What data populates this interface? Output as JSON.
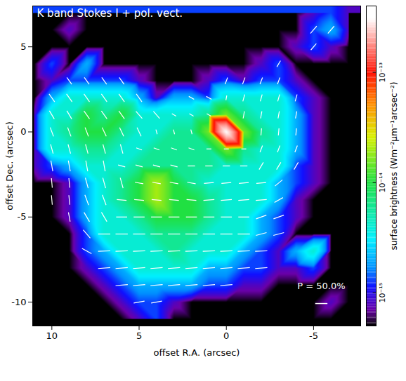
{
  "chart_data": {
    "type": "heatmap",
    "title": "K band Stokes I + pol. vect.",
    "x_label": "offset R.A. (arcsec)",
    "y_label": "offset Dec. (arcsec)",
    "xlim": [
      11.1,
      -7.7
    ],
    "xticks": [
      10,
      5,
      0,
      -5
    ],
    "ylim": [
      -11.4,
      7.4
    ],
    "yticks": [
      5,
      0,
      -5,
      -10
    ],
    "grid": false,
    "cells": {
      "x": [
        11,
        10,
        9,
        8,
        7,
        6,
        5,
        4,
        3,
        2,
        1,
        0,
        -1,
        -2,
        -3,
        -4,
        -5,
        -6,
        -7
      ],
      "y": [
        7,
        6,
        5,
        4,
        3,
        2,
        1,
        0,
        -1,
        -2,
        -3,
        -4,
        -5,
        -6,
        -7,
        -8,
        -9,
        -10,
        -11
      ],
      "values": [
        [
          5e-16,
          5e-16,
          5e-16,
          5e-16,
          5e-16,
          5e-16,
          5e-16,
          5e-16,
          5e-16,
          5e-16,
          5e-16,
          5e-16,
          5e-16,
          5e-16,
          5e-16,
          5e-16,
          8e-16,
          1.3e-15,
          8e-16
        ],
        [
          5e-16,
          5e-16,
          8e-16,
          5e-16,
          5e-16,
          5e-16,
          5e-16,
          5e-16,
          5e-16,
          5e-16,
          5e-16,
          5e-16,
          5e-16,
          5e-16,
          5e-16,
          5e-16,
          1.3e-15,
          2e-15,
          8e-16
        ],
        [
          5e-16,
          5e-16,
          5e-16,
          5e-16,
          5e-16,
          5e-16,
          5e-16,
          5e-16,
          5e-16,
          5e-16,
          5e-16,
          5e-16,
          5e-16,
          5e-16,
          5e-16,
          8e-16,
          1.3e-15,
          8e-16,
          5e-16
        ],
        [
          5e-16,
          1.3e-15,
          5e-16,
          2e-15,
          5e-16,
          5e-16,
          5e-16,
          5e-16,
          5e-16,
          5e-16,
          5e-16,
          5e-16,
          5e-16,
          8e-16,
          1.3e-15,
          5e-16,
          5e-16,
          5e-16,
          5e-16
        ],
        [
          5e-16,
          8e-16,
          1.3e-15,
          1.3e-15,
          1.3e-15,
          1.3e-15,
          8e-16,
          5e-16,
          5e-16,
          5e-16,
          8e-16,
          1.3e-15,
          8e-16,
          1.3e-15,
          1.3e-15,
          8e-16,
          5e-16,
          5e-16,
          5e-16
        ],
        [
          5e-16,
          2e-15,
          4e-15,
          4e-15,
          4e-15,
          4e-15,
          2e-15,
          8e-16,
          2e-15,
          2e-15,
          1.3e-15,
          4e-15,
          4e-15,
          4e-15,
          4e-15,
          1.3e-15,
          8e-16,
          5e-16,
          5e-16
        ],
        [
          8e-16,
          4e-15,
          4e-15,
          1e-14,
          6e-15,
          1e-14,
          4e-15,
          4e-15,
          4e-15,
          4e-15,
          6e-15,
          1.5e-14,
          6e-15,
          4e-15,
          4e-15,
          2e-15,
          8e-16,
          5e-16,
          5e-16
        ],
        [
          8e-16,
          4e-15,
          6e-15,
          1e-14,
          1e-14,
          6e-15,
          4e-15,
          4e-15,
          6e-15,
          6e-15,
          1.5e-14,
          3e-13,
          1.5e-14,
          6e-15,
          4e-15,
          2e-15,
          8e-16,
          5e-16,
          5e-16
        ],
        [
          8e-16,
          4e-15,
          4e-15,
          6e-15,
          6e-15,
          4e-15,
          4e-15,
          6e-15,
          6e-15,
          6e-15,
          6e-15,
          1.5e-14,
          6e-15,
          4e-15,
          4e-15,
          2e-15,
          8e-16,
          5e-16,
          5e-16
        ],
        [
          8e-16,
          1.3e-15,
          2e-15,
          4e-15,
          4e-15,
          4e-15,
          6e-15,
          6e-15,
          6e-15,
          6e-15,
          6e-15,
          4e-15,
          4e-15,
          4e-15,
          4e-15,
          1.3e-15,
          8e-16,
          5e-16,
          5e-16
        ],
        [
          5e-16,
          5e-16,
          8e-16,
          2e-15,
          4e-15,
          6e-15,
          1e-14,
          2e-14,
          1e-14,
          6e-15,
          4e-15,
          4e-15,
          4e-15,
          4e-15,
          2e-15,
          1.3e-15,
          8e-16,
          5e-16,
          5e-16
        ],
        [
          5e-16,
          5e-16,
          8e-16,
          2e-15,
          4e-15,
          6e-15,
          1e-14,
          2e-14,
          1e-14,
          1e-14,
          6e-15,
          4e-15,
          4e-15,
          4e-15,
          2e-15,
          8e-16,
          5e-16,
          5e-16,
          5e-16
        ],
        [
          5e-16,
          5e-16,
          8e-16,
          2e-15,
          4e-15,
          4e-15,
          6e-15,
          1e-14,
          1e-14,
          1e-14,
          6e-15,
          4e-15,
          4e-15,
          2e-15,
          1.3e-15,
          8e-16,
          5e-16,
          5e-16,
          5e-16
        ],
        [
          5e-16,
          5e-16,
          5e-16,
          1.3e-15,
          4e-15,
          4e-15,
          4e-15,
          6e-15,
          6e-15,
          6e-15,
          4e-15,
          4e-15,
          4e-15,
          2e-15,
          1.3e-15,
          5e-16,
          5e-16,
          5e-16,
          5e-16
        ],
        [
          5e-16,
          5e-16,
          5e-16,
          1.3e-15,
          2e-15,
          4e-15,
          4e-15,
          4e-15,
          6e-15,
          4e-15,
          4e-15,
          4e-15,
          2e-15,
          1.3e-15,
          8e-16,
          2e-15,
          4e-15,
          5e-16,
          5e-16
        ],
        [
          5e-16,
          5e-16,
          5e-16,
          8e-16,
          1.3e-15,
          2e-15,
          4e-15,
          4e-15,
          4e-15,
          4e-15,
          2e-15,
          2e-15,
          1.3e-15,
          1.3e-15,
          8e-16,
          8e-16,
          1.3e-15,
          5e-16,
          5e-16
        ],
        [
          5e-16,
          5e-16,
          5e-16,
          5e-16,
          8e-16,
          1.3e-15,
          2e-15,
          2e-15,
          2e-15,
          2e-15,
          1.3e-15,
          1.3e-15,
          8e-16,
          8e-16,
          5e-16,
          5e-16,
          5e-16,
          5e-16,
          5e-16
        ],
        [
          5e-16,
          5e-16,
          5e-16,
          5e-16,
          5e-16,
          8e-16,
          1.3e-15,
          1.3e-15,
          8e-16,
          5e-16,
          5e-16,
          5e-16,
          5e-16,
          5e-16,
          5e-16,
          5e-16,
          5e-16,
          8e-16,
          5e-16
        ],
        [
          5e-16,
          5e-16,
          5e-16,
          5e-16,
          5e-16,
          5e-16,
          8e-16,
          1.3e-15,
          5e-16,
          5e-16,
          5e-16,
          5e-16,
          5e-16,
          5e-16,
          5e-16,
          5e-16,
          5e-16,
          5e-16,
          5e-16
        ]
      ]
    },
    "colorbar": {
      "label": "surface brightness (Wm⁻²μm⁻¹arcsec⁻²)",
      "lim": [
        5e-16,
        4e-13
      ],
      "ticks": [
        {
          "value": 1e-15,
          "label": "10⁻¹⁵"
        },
        {
          "value": 1e-14,
          "label": "10⁻¹⁴"
        },
        {
          "value": 1e-13,
          "label": "10⁻¹³"
        }
      ],
      "log": true
    },
    "vectors": {
      "color": "#ffffff",
      "x": [
        10,
        9,
        8,
        7,
        6,
        5,
        4,
        3,
        2,
        1,
        0,
        -1,
        -2,
        -3,
        -4,
        -5,
        -6
      ],
      "y": [
        6,
        5,
        4,
        3,
        2,
        1,
        0,
        -1,
        -2,
        -3,
        -4,
        -5,
        -6,
        -7,
        -8,
        -9,
        -10
      ],
      "p": [
        [
          null,
          null,
          null,
          null,
          null,
          null,
          null,
          null,
          null,
          null,
          null,
          null,
          null,
          null,
          null,
          40,
          40
        ],
        [
          null,
          null,
          null,
          null,
          null,
          null,
          null,
          null,
          null,
          null,
          null,
          null,
          null,
          null,
          null,
          35,
          null
        ],
        [
          null,
          null,
          null,
          null,
          null,
          null,
          null,
          null,
          null,
          null,
          null,
          null,
          null,
          30,
          null,
          null,
          null
        ],
        [
          null,
          35,
          35,
          35,
          35,
          null,
          null,
          null,
          null,
          null,
          30,
          30,
          30,
          30,
          null,
          null,
          null
        ],
        [
          40,
          40,
          40,
          40,
          40,
          40,
          null,
          null,
          25,
          25,
          20,
          30,
          30,
          30,
          30,
          null,
          null
        ],
        [
          40,
          40,
          40,
          40,
          40,
          40,
          40,
          20,
          20,
          20,
          null,
          30,
          30,
          30,
          30,
          null,
          null
        ],
        [
          40,
          40,
          40,
          40,
          40,
          40,
          20,
          20,
          20,
          null,
          null,
          null,
          30,
          30,
          30,
          null,
          null
        ],
        [
          40,
          40,
          40,
          40,
          40,
          25,
          25,
          25,
          25,
          20,
          20,
          20,
          30,
          30,
          30,
          null,
          null
        ],
        [
          45,
          45,
          45,
          45,
          30,
          30,
          30,
          30,
          30,
          30,
          30,
          30,
          35,
          35,
          35,
          null,
          null
        ],
        [
          40,
          40,
          45,
          45,
          45,
          35,
          35,
          35,
          35,
          40,
          40,
          40,
          40,
          40,
          null,
          null,
          null
        ],
        [
          40,
          40,
          45,
          45,
          40,
          40,
          40,
          40,
          40,
          45,
          45,
          45,
          45,
          40,
          null,
          null,
          null
        ],
        [
          null,
          40,
          45,
          45,
          45,
          45,
          45,
          45,
          45,
          45,
          45,
          45,
          45,
          45,
          null,
          null,
          null
        ],
        [
          null,
          null,
          45,
          50,
          50,
          50,
          50,
          50,
          50,
          50,
          50,
          50,
          45,
          45,
          null,
          null,
          null
        ],
        [
          null,
          null,
          45,
          50,
          50,
          50,
          50,
          50,
          50,
          50,
          50,
          50,
          50,
          null,
          null,
          null,
          null
        ],
        [
          null,
          null,
          null,
          50,
          50,
          50,
          50,
          50,
          50,
          50,
          50,
          50,
          50,
          null,
          null,
          null,
          null
        ],
        [
          null,
          null,
          null,
          null,
          50,
          50,
          50,
          50,
          50,
          50,
          50,
          null,
          null,
          null,
          null,
          null,
          null
        ],
        [
          null,
          null,
          null,
          null,
          null,
          45,
          45,
          null,
          null,
          null,
          null,
          null,
          null,
          null,
          null,
          null,
          null
        ]
      ],
      "pa": [
        [
          null,
          null,
          null,
          null,
          null,
          null,
          null,
          null,
          null,
          null,
          null,
          null,
          null,
          null,
          null,
          140,
          140
        ],
        [
          null,
          null,
          null,
          null,
          null,
          null,
          null,
          null,
          null,
          null,
          null,
          null,
          null,
          null,
          null,
          140,
          null
        ],
        [
          null,
          null,
          null,
          null,
          null,
          null,
          null,
          null,
          null,
          null,
          null,
          null,
          null,
          150,
          null,
          null,
          null
        ],
        [
          null,
          35,
          35,
          35,
          35,
          null,
          null,
          null,
          null,
          null,
          160,
          160,
          160,
          160,
          null,
          null,
          null
        ],
        [
          35,
          35,
          35,
          35,
          35,
          35,
          null,
          null,
          60,
          60,
          170,
          165,
          165,
          165,
          165,
          null,
          null
        ],
        [
          30,
          30,
          35,
          35,
          35,
          40,
          40,
          60,
          60,
          60,
          null,
          170,
          170,
          170,
          170,
          null,
          null
        ],
        [
          20,
          20,
          20,
          25,
          25,
          25,
          15,
          15,
          15,
          null,
          null,
          null,
          175,
          175,
          175,
          null,
          null
        ],
        [
          15,
          15,
          15,
          15,
          15,
          70,
          70,
          70,
          70,
          90,
          90,
          90,
          160,
          160,
          160,
          null,
          null
        ],
        [
          10,
          10,
          10,
          10,
          75,
          75,
          75,
          75,
          90,
          90,
          90,
          90,
          150,
          150,
          150,
          null,
          null
        ],
        [
          5,
          5,
          15,
          15,
          15,
          80,
          80,
          80,
          80,
          95,
          95,
          95,
          95,
          130,
          null,
          null,
          null
        ],
        [
          5,
          5,
          20,
          20,
          85,
          85,
          85,
          85,
          85,
          95,
          95,
          95,
          95,
          120,
          null,
          null,
          null
        ],
        [
          null,
          10,
          30,
          30,
          90,
          90,
          90,
          90,
          90,
          90,
          90,
          90,
          110,
          110,
          null,
          null,
          null
        ],
        [
          null,
          null,
          40,
          90,
          90,
          90,
          90,
          90,
          90,
          90,
          90,
          90,
          105,
          105,
          null,
          null,
          null
        ],
        [
          null,
          null,
          60,
          92,
          92,
          92,
          92,
          92,
          92,
          92,
          92,
          92,
          92,
          null,
          null,
          null,
          null
        ],
        [
          null,
          null,
          null,
          95,
          95,
          95,
          95,
          95,
          95,
          95,
          95,
          95,
          95,
          null,
          null,
          null,
          null
        ],
        [
          null,
          null,
          null,
          null,
          95,
          95,
          95,
          95,
          95,
          95,
          95,
          null,
          null,
          null,
          null,
          null,
          null
        ],
        [
          null,
          null,
          null,
          null,
          null,
          100,
          100,
          null,
          null,
          null,
          null,
          null,
          null,
          null,
          null,
          null,
          null
        ]
      ]
    },
    "reference_vector": {
      "p": 50.0,
      "label": "P = 50.0%"
    }
  }
}
